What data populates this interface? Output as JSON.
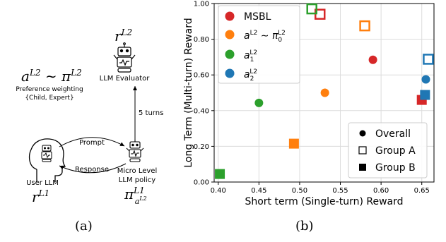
{
  "diagram": {
    "caption": "(a)",
    "top_policy": "a^{L2} ~ π^{L2}",
    "preference_title": "Preference weighting",
    "preference_values": "{Child, Expert}",
    "evaluator_symbol": "r^{L2}",
    "evaluator_label": "LLM Evaluator",
    "turns_label": "5 turns",
    "prompt_label": "Prompt",
    "response_label": "Response",
    "user_label": "User LLM",
    "user_symbol": "r^{L1}",
    "policy_label_1": "Micro Level",
    "policy_label_2": "LLM policy",
    "policy_symbol": "π^{L1}_{a^{L2}}"
  },
  "chart_caption": "(b)",
  "chart_data": {
    "type": "scatter",
    "xlabel": "Short term (Single-turn) Reward",
    "ylabel": "Long Term (Multi-turn) Reward",
    "xlim": [
      0.395,
      0.665
    ],
    "ylim": [
      0.0,
      1.0
    ],
    "x_ticks": [
      "0.40",
      "0.45",
      "0.50",
      "0.55",
      "0.60",
      "0.65"
    ],
    "y_ticks": [
      "0.00",
      "0.20",
      "0.40",
      "0.60",
      "0.80",
      "1.00"
    ],
    "grid": true,
    "series": [
      {
        "name": "MSBL",
        "color": "#d62728",
        "overall": [
          0.59,
          0.685
        ],
        "group_a": [
          0.525,
          0.94
        ],
        "group_b": [
          0.65,
          0.46
        ]
      },
      {
        "name": "a^{L2} ~ π_0^{L2}",
        "color": "#ff7f0e",
        "overall": [
          0.531,
          0.5
        ],
        "group_a": [
          0.58,
          0.875
        ],
        "group_b": [
          0.493,
          0.215
        ]
      },
      {
        "name": "a_1^{L2}",
        "color": "#2ca02c",
        "overall": [
          0.45,
          0.443
        ],
        "group_a": [
          0.515,
          0.97
        ],
        "group_b": [
          0.402,
          0.045
        ]
      },
      {
        "name": "a_2^{L2}",
        "color": "#1f77b4",
        "overall": [
          0.655,
          0.575
        ],
        "group_a": [
          0.658,
          0.688
        ],
        "group_b": [
          0.654,
          0.488
        ]
      }
    ],
    "marker_legend": [
      {
        "label": "Overall",
        "marker": "circle"
      },
      {
        "label": "Group A",
        "marker": "square-open"
      },
      {
        "label": "Group B",
        "marker": "square-filled"
      }
    ],
    "series_legend_position": "top-left",
    "marker_legend_position": "bottom-right"
  }
}
